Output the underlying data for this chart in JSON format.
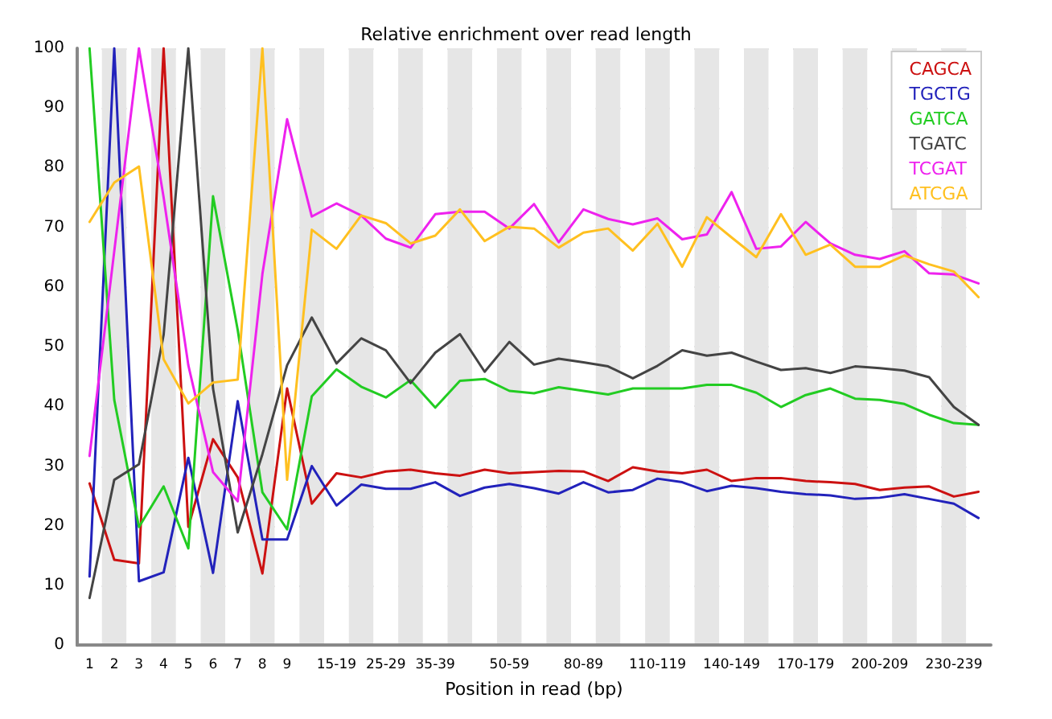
{
  "chart_data": {
    "type": "line",
    "title": "Relative enrichment over read length",
    "xlabel": "Position in read (bp)",
    "categories": [
      "1",
      "2",
      "3",
      "4",
      "5",
      "6",
      "7",
      "8",
      "9",
      null,
      "15-19",
      null,
      "25-29",
      null,
      "35-39",
      null,
      null,
      "50-59",
      null,
      null,
      "80-89",
      null,
      null,
      "110-119",
      null,
      null,
      "140-149",
      null,
      null,
      "170-179",
      null,
      null,
      "200-209",
      null,
      null,
      "230-239",
      null
    ],
    "series": [
      {
        "name": "CAGCA",
        "color": "#cc1111",
        "values": [
          27.1,
          14.3,
          13.7,
          100,
          19.8,
          34.5,
          28.1,
          12.0,
          43.0,
          23.7,
          28.8,
          28.1,
          29.1,
          29.4,
          28.8,
          28.4,
          29.4,
          28.8,
          29.0,
          29.2,
          29.1,
          27.5,
          29.8,
          29.1,
          28.8,
          29.4,
          27.5,
          28.0,
          28.0,
          27.5,
          27.3,
          27.0,
          26.0,
          26.4,
          26.6,
          24.9,
          25.7
        ]
      },
      {
        "name": "TGCTG",
        "color": "#2222bb",
        "values": [
          11.5,
          100,
          10.7,
          12.2,
          31.4,
          12.1,
          40.9,
          17.7,
          17.7,
          30.0,
          23.4,
          26.9,
          26.2,
          26.2,
          27.3,
          25.0,
          26.4,
          27.0,
          26.3,
          25.4,
          27.3,
          25.6,
          26.0,
          27.9,
          27.3,
          25.8,
          26.7,
          26.3,
          25.7,
          25.3,
          25.1,
          24.5,
          24.7,
          25.3,
          24.5,
          23.7,
          21.3
        ]
      },
      {
        "name": "GATCA",
        "color": "#22cc22",
        "values": [
          100,
          41.1,
          19.8,
          26.6,
          16.2,
          75.2,
          52.8,
          25.6,
          19.4,
          41.7,
          46.2,
          43.3,
          41.5,
          44.4,
          39.8,
          44.3,
          44.6,
          42.6,
          42.2,
          43.2,
          42.6,
          42.0,
          43.0,
          43.0,
          43.0,
          43.6,
          43.6,
          42.3,
          39.9,
          41.9,
          43.0,
          41.3,
          41.1,
          40.4,
          38.6,
          37.2,
          36.9
        ]
      },
      {
        "name": "TGATC",
        "color": "#444444",
        "values": [
          7.9,
          27.7,
          30.3,
          52,
          100,
          43.0,
          18.9,
          32.0,
          46.9,
          54.9,
          47.2,
          51.4,
          49.4,
          43.9,
          49.0,
          52.1,
          45.8,
          50.8,
          47.0,
          48.0,
          47.4,
          46.7,
          44.7,
          46.8,
          49.4,
          48.5,
          49.0,
          47.5,
          46.1,
          46.4,
          45.6,
          46.7,
          46.4,
          46.0,
          44.9,
          39.9,
          36.9
        ]
      },
      {
        "name": "TCGAT",
        "color": "#ee22ee",
        "values": [
          31.7,
          66,
          100,
          75,
          46.9,
          29.0,
          24.1,
          62.2,
          88.1,
          71.8,
          74.0,
          72.0,
          68.1,
          66.6,
          72.2,
          72.6,
          72.6,
          69.8,
          73.9,
          67.5,
          73.0,
          71.4,
          70.5,
          71.5,
          68.0,
          68.8,
          75.9,
          66.4,
          66.8,
          70.9,
          67.3,
          65.4,
          64.7,
          66.0,
          62.3,
          62.1,
          60.6
        ]
      },
      {
        "name": "ATCGA",
        "color": "#ffc020",
        "values": [
          70.9,
          77.5,
          80.2,
          47.9,
          40.5,
          44.0,
          44.5,
          100,
          27.7,
          69.6,
          66.4,
          72.0,
          70.7,
          67.3,
          68.6,
          73.0,
          67.7,
          70.1,
          69.8,
          66.6,
          69.1,
          69.8,
          66.1,
          70.6,
          63.4,
          71.7,
          68.3,
          65.0,
          72.2,
          65.4,
          67.1,
          63.4,
          63.4,
          65.3,
          63.8,
          62.6,
          58.3
        ]
      }
    ],
    "ylim": [
      0,
      100
    ],
    "yticks": [
      0,
      10,
      20,
      30,
      40,
      50,
      60,
      70,
      80,
      90,
      100
    ],
    "grid": "y",
    "legend": "top right",
    "marker": "none",
    "line_style": "solid"
  }
}
